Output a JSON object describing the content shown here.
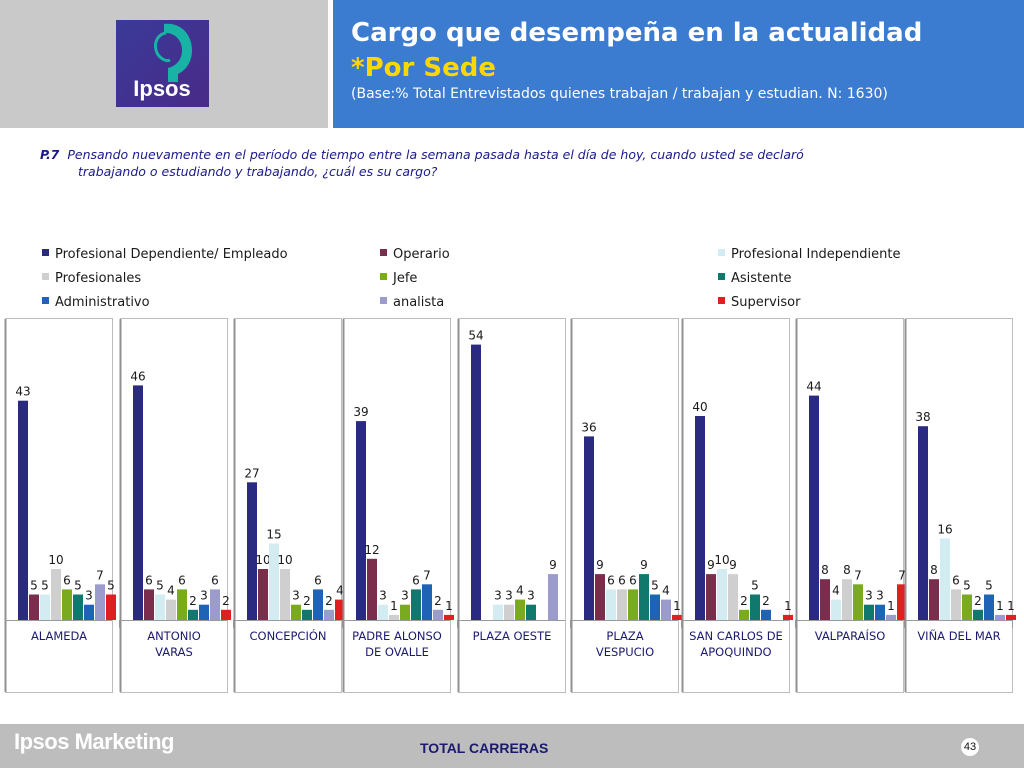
{
  "header": {
    "logo_text": "Ipsos",
    "title": "Cargo que desempeña en la actualidad",
    "subtitle": "*Por Sede",
    "base": "(Base:% Total Entrevistados quienes trabajan / trabajan y estudian. N: 1630)"
  },
  "question": {
    "number": "P.7",
    "line1": "Pensando nuevamente en el período de tiempo entre la semana pasada hasta el día de hoy, cuando usted se declaró",
    "line2": "trabajando o estudiando y trabajando, ¿cuál es su cargo?"
  },
  "footer": {
    "brand": "Ipsos Marketing",
    "total": "TOTAL CARRERAS",
    "page_number": "43"
  },
  "chart_data": {
    "type": "bar",
    "categories": [
      [
        "ALAMEDA"
      ],
      [
        "ANTONIO",
        "VARAS"
      ],
      [
        "CONCEPCIÓN"
      ],
      [
        "PADRE ALONSO",
        "DE OVALLE"
      ],
      [
        "PLAZA OESTE"
      ],
      [
        "PLAZA",
        "VESPUCIO"
      ],
      [
        "SAN CARLOS DE",
        "APOQUINDO"
      ],
      [
        "VALPARAÍSO"
      ],
      [
        "VIÑA DEL MAR"
      ]
    ],
    "series": [
      {
        "name": "Profesional Dependiente/ Empleado",
        "color": "#2a2a80",
        "values": [
          43,
          46,
          27,
          39,
          54,
          36,
          40,
          44,
          38
        ]
      },
      {
        "name": "Operario",
        "color": "#7b2d4e",
        "values": [
          5,
          6,
          10,
          12,
          null,
          9,
          9,
          8,
          8
        ]
      },
      {
        "name": "Profesional Independiente",
        "color": "#d2ecf2",
        "values": [
          5,
          5,
          15,
          3,
          3,
          6,
          10,
          4,
          16
        ]
      },
      {
        "name": "Profesionales",
        "color": "#cfcfcf",
        "values": [
          10,
          4,
          10,
          1,
          3,
          6,
          9,
          8,
          6
        ]
      },
      {
        "name": "Jefe",
        "color": "#7aaa1e",
        "values": [
          6,
          6,
          3,
          3,
          4,
          6,
          2,
          7,
          5
        ]
      },
      {
        "name": "Asistente",
        "color": "#11786e",
        "values": [
          5,
          2,
          2,
          6,
          3,
          9,
          5,
          3,
          2
        ]
      },
      {
        "name": "Administrativo",
        "color": "#1f63b5",
        "values": [
          3,
          3,
          6,
          7,
          null,
          5,
          2,
          3,
          5
        ]
      },
      {
        "name": "analista",
        "color": "#9c9ccc",
        "values": [
          7,
          6,
          2,
          2,
          9,
          4,
          null,
          1,
          1
        ]
      },
      {
        "name": "Supervisor",
        "color": "#e02020",
        "values": [
          5,
          2,
          4,
          1,
          null,
          1,
          1,
          7,
          1
        ]
      }
    ],
    "ylim": [
      0,
      60
    ],
    "grid": false,
    "legend_position": "top",
    "xlabel": "",
    "ylabel": ""
  }
}
